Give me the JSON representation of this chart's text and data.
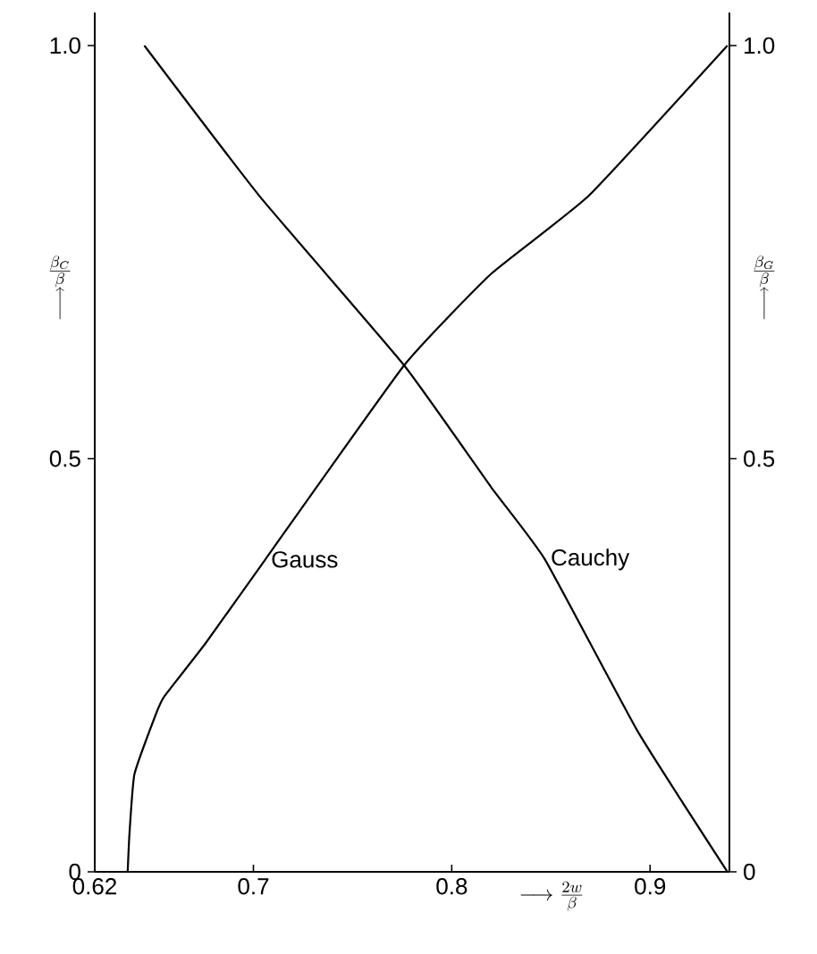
{
  "chart_data": {
    "type": "line",
    "xlabel": "\\longrightarrow\\frac{2w}{\\beta}",
    "ylabel": "\\begin{array}{c}\\frac{\\beta_C}{\\beta}\\\\ \\Big\\uparrow\\end{array}",
    "y2label": "\\begin{array}{c}\\frac{\\beta_G}{\\beta}\\\\ \\Big\\uparrow\\end{array}",
    "xlim": [
      0.62,
      0.94
    ],
    "ylim": [
      0,
      1.04
    ],
    "y2lim": [
      0,
      1.04
    ],
    "xticks": [
      0.62,
      0.7,
      0.8,
      0.9
    ],
    "yticks": [
      0,
      0.5,
      {
        "value": 1.0,
        "label": "1.0"
      }
    ],
    "y2ticks": [
      0,
      0.5,
      {
        "value": 1.0,
        "label": "1.0"
      }
    ],
    "grid": false,
    "marker": "none",
    "line_style": "solid",
    "series": [
      {
        "name": "Gauss",
        "color": "#000000",
        "x": [
          0.6366,
          0.6375,
          0.64,
          0.6507,
          0.655,
          0.676,
          0.706,
          0.776,
          0.82,
          0.869,
          0.939
        ],
        "values": [
          0,
          0.046,
          0.118,
          0.19,
          0.212,
          0.277,
          0.378,
          0.613,
          0.724,
          0.818,
          1.0
        ]
      },
      {
        "name": "Cauchy",
        "color": "#000000",
        "x": [
          0.645,
          0.703,
          0.776,
          0.82,
          0.847,
          0.894,
          0.939
        ],
        "values": [
          1.0,
          0.818,
          0.613,
          0.465,
          0.378,
          0.169,
          0
        ]
      }
    ]
  }
}
